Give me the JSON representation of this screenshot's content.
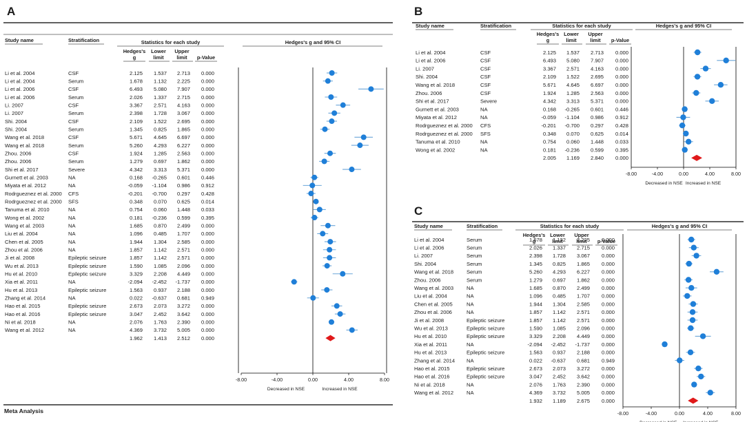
{
  "page_footer": "Meta Analysis",
  "colors": {
    "point": "#1f7fd8",
    "ci": "#6aa5d8",
    "summary": "#e0191a",
    "rule": "#000000",
    "text": "#1a1a1a"
  },
  "headers": {
    "study": "Study name",
    "strat": "Stratification",
    "group": "Statistics for each study",
    "g1": "Hedges's",
    "g2": "g",
    "lower1": "Lower",
    "lower2": "limit",
    "upper1": "Upper",
    "upper2": "limit",
    "p": "p-Value",
    "forest": "Hedges's g and 95% CI"
  },
  "axis": {
    "ticks": [
      -8,
      -4,
      0,
      4,
      8
    ],
    "tick_labels": [
      "-8.00",
      "-4.00",
      "0.00",
      "4.00",
      "8.00"
    ],
    "left_label": "Decreased in NSE",
    "right_label": "Increased in NSE"
  },
  "chart_data": [
    {
      "panel": "A",
      "type": "forest",
      "xlim": [
        -8,
        8
      ],
      "rows": [
        [
          "Li et al. 2004",
          "CSF",
          "2.125",
          "1.537",
          "2.713",
          "0.000"
        ],
        [
          "Li et al. 2004",
          "Serum",
          "1.678",
          "1.132",
          "2.225",
          "0.000"
        ],
        [
          "Li et al. 2006",
          "CSF",
          "6.493",
          "5.080",
          "7.907",
          "0.000"
        ],
        [
          "Li et al. 2006",
          "Serum",
          "2.026",
          "1.337",
          "2.715",
          "0.000"
        ],
        [
          "Li. 2007",
          "CSF",
          "3.367",
          "2.571",
          "4.163",
          "0.000"
        ],
        [
          "Li. 2007",
          "Serum",
          "2.398",
          "1.728",
          "3.067",
          "0.000"
        ],
        [
          "Shi. 2004",
          "CSF",
          "2.109",
          "1.522",
          "2.695",
          "0.000"
        ],
        [
          "Shi. 2004",
          "Serum",
          "1.345",
          "0.825",
          "1.865",
          "0.000"
        ],
        [
          "Wang et al. 2018",
          "CSF",
          "5.671",
          "4.645",
          "6.697",
          "0.000"
        ],
        [
          "Wang et al. 2018",
          "Serum",
          "5.260",
          "4.293",
          "6.227",
          "0.000"
        ],
        [
          "Zhou. 2006",
          "CSF",
          "1.924",
          "1.285",
          "2.563",
          "0.000"
        ],
        [
          "Zhou. 2006",
          "Serum",
          "1.279",
          "0.697",
          "1.862",
          "0.000"
        ],
        [
          "Shi et al. 2017",
          "Severe",
          "4.342",
          "3.313",
          "5.371",
          "0.000"
        ],
        [
          "Gurnett et al. 2003",
          "NA",
          "0.168",
          "-0.265",
          "0.601",
          "0.446"
        ],
        [
          "Miyata et al. 2012",
          "NA",
          "-0.059",
          "-1.104",
          "0.986",
          "0.912"
        ],
        [
          "Rodrgueznez et al. 2000",
          "CFS",
          "-0.201",
          "-0.700",
          "0.297",
          "0.428"
        ],
        [
          "Rodrgueznez et al. 2000",
          "SFS",
          "0.348",
          "0.070",
          "0.625",
          "0.014"
        ],
        [
          "Tanuma et al. 2010",
          "NA",
          "0.754",
          "0.060",
          "1.448",
          "0.033"
        ],
        [
          "Wong et al. 2002",
          "NA",
          "0.181",
          "-0.236",
          "0.599",
          "0.395"
        ],
        [
          "Wang et al. 2003",
          "NA",
          "1.685",
          "0.870",
          "2.499",
          "0.000"
        ],
        [
          "Liu et al. 2004",
          "NA",
          "1.096",
          "0.485",
          "1.707",
          "0.000"
        ],
        [
          "Chen et al. 2005",
          "NA",
          "1.944",
          "1.304",
          "2.585",
          "0.000"
        ],
        [
          "Zhou et al. 2006",
          "NA",
          "1.857",
          "1.142",
          "2.571",
          "0.000"
        ],
        [
          "Ji et al. 2008",
          "Epileptic seizure",
          "1.857",
          "1.142",
          "2.571",
          "0.000"
        ],
        [
          "Wu et al. 2013",
          "Epileptic seizure",
          "1.590",
          "1.085",
          "2.096",
          "0.000"
        ],
        [
          "Hu et al. 2010",
          "Epileptic seizure",
          "3.329",
          "2.208",
          "4.449",
          "0.000"
        ],
        [
          "Xia et al. 2011",
          "NA",
          "-2.094",
          "-2.452",
          "-1.737",
          "0.000"
        ],
        [
          "Hu et al. 2013",
          "Epileptic seizure",
          "1.563",
          "0.937",
          "2.188",
          "0.000"
        ],
        [
          "Zhang et al. 2014",
          "NA",
          "0.022",
          "-0.637",
          "0.681",
          "0.949"
        ],
        [
          "Hao et al. 2015",
          "Epileptic seizure",
          "2.673",
          "2.073",
          "3.272",
          "0.000"
        ],
        [
          "Hao et al. 2016",
          "Epileptic seizure",
          "3.047",
          "2.452",
          "3.642",
          "0.000"
        ],
        [
          "Ni et al. 2018",
          "NA",
          "2.076",
          "1.763",
          "2.390",
          "0.000"
        ],
        [
          "Wang et al. 2012",
          "NA",
          "4.369",
          "3.732",
          "5.005",
          "0.000"
        ]
      ],
      "summary": [
        "1.962",
        "1.413",
        "2.512",
        "0.000"
      ]
    },
    {
      "panel": "B",
      "type": "forest",
      "xlim": [
        -8,
        8
      ],
      "rows": [
        [
          "Li et al. 2004",
          "CSF",
          "2.125",
          "1.537",
          "2.713",
          "0.000"
        ],
        [
          "Li et al. 2006",
          "CSF",
          "6.493",
          "5.080",
          "7.907",
          "0.000"
        ],
        [
          "Li. 2007",
          "CSF",
          "3.367",
          "2.571",
          "4.163",
          "0.000"
        ],
        [
          "Shi. 2004",
          "CSF",
          "2.109",
          "1.522",
          "2.695",
          "0.000"
        ],
        [
          "Wang et al. 2018",
          "CSF",
          "5.671",
          "4.645",
          "6.697",
          "0.000"
        ],
        [
          "Zhou. 2006",
          "CSF",
          "1.924",
          "1.285",
          "2.563",
          "0.000"
        ],
        [
          "Shi et al. 2017",
          "Severe",
          "4.342",
          "3.313",
          "5.371",
          "0.000"
        ],
        [
          "Gurnett et al. 2003",
          "NA",
          "0.168",
          "-0.265",
          "0.601",
          "0.446"
        ],
        [
          "Miyata et al. 2012",
          "NA",
          "-0.059",
          "-1.104",
          "0.986",
          "0.912"
        ],
        [
          "Rodrgueznez et al. 2000",
          "CFS",
          "-0.201",
          "-0.700",
          "0.297",
          "0.428"
        ],
        [
          "Rodrgueznez et al. 2000",
          "SFS",
          "0.348",
          "0.070",
          "0.625",
          "0.014"
        ],
        [
          "Tanuma et al. 2010",
          "NA",
          "0.754",
          "0.060",
          "1.448",
          "0.033"
        ],
        [
          "Wong et al. 2002",
          "NA",
          "0.181",
          "-0.236",
          "0.599",
          "0.395"
        ]
      ],
      "summary": [
        "2.005",
        "1.169",
        "2.840",
        "0.000"
      ]
    },
    {
      "panel": "C",
      "type": "forest",
      "xlim": [
        -8,
        8
      ],
      "rows": [
        [
          "Li et al. 2004",
          "Serum",
          "1.678",
          "1.132",
          "2.225",
          "0.000"
        ],
        [
          "Li et al. 2006",
          "Serum",
          "2.026",
          "1.337",
          "2.715",
          "0.000"
        ],
        [
          "Li. 2007",
          "Serum",
          "2.398",
          "1.728",
          "3.067",
          "0.000"
        ],
        [
          "Shi. 2004",
          "Serum",
          "1.345",
          "0.825",
          "1.865",
          "0.000"
        ],
        [
          "Wang et al. 2018",
          "Serum",
          "5.260",
          "4.293",
          "6.227",
          "0.000"
        ],
        [
          "Zhou. 2006",
          "Serum",
          "1.279",
          "0.697",
          "1.862",
          "0.000"
        ],
        [
          "Wang et al. 2003",
          "NA",
          "1.685",
          "0.870",
          "2.499",
          "0.000"
        ],
        [
          "Liu et al. 2004",
          "NA",
          "1.096",
          "0.485",
          "1.707",
          "0.000"
        ],
        [
          "Chen et al. 2005",
          "NA",
          "1.944",
          "1.304",
          "2.585",
          "0.000"
        ],
        [
          "Zhou et al. 2006",
          "NA",
          "1.857",
          "1.142",
          "2.571",
          "0.000"
        ],
        [
          "Ji et al. 2008",
          "Epileptic seizure",
          "1.857",
          "1.142",
          "2.571",
          "0.000"
        ],
        [
          "Wu et al. 2013",
          "Epileptic seizure",
          "1.590",
          "1.085",
          "2.096",
          "0.000"
        ],
        [
          "Hu et al. 2010",
          "Epileptic seizure",
          "3.329",
          "2.208",
          "4.449",
          "0.000"
        ],
        [
          "Xia et al. 2011",
          "NA",
          "-2.094",
          "-2.452",
          "-1.737",
          "0.000"
        ],
        [
          "Hu et al. 2013",
          "Epileptic seizure",
          "1.563",
          "0.937",
          "2.188",
          "0.000"
        ],
        [
          "Zhang et al. 2014",
          "NA",
          "0.022",
          "-0.637",
          "0.681",
          "0.949"
        ],
        [
          "Hao et al. 2015",
          "Epileptic seizure",
          "2.673",
          "2.073",
          "3.272",
          "0.000"
        ],
        [
          "Hao et al. 2016",
          "Epileptic seizure",
          "3.047",
          "2.452",
          "3.642",
          "0.000"
        ],
        [
          "Ni et al. 2018",
          "NA",
          "2.076",
          "1.763",
          "2.390",
          "0.000"
        ],
        [
          "Wang et al. 2012",
          "NA",
          "4.369",
          "3.732",
          "5.005",
          "0.000"
        ]
      ],
      "summary": [
        "1.932",
        "1.189",
        "2.675",
        "0.000"
      ]
    }
  ]
}
